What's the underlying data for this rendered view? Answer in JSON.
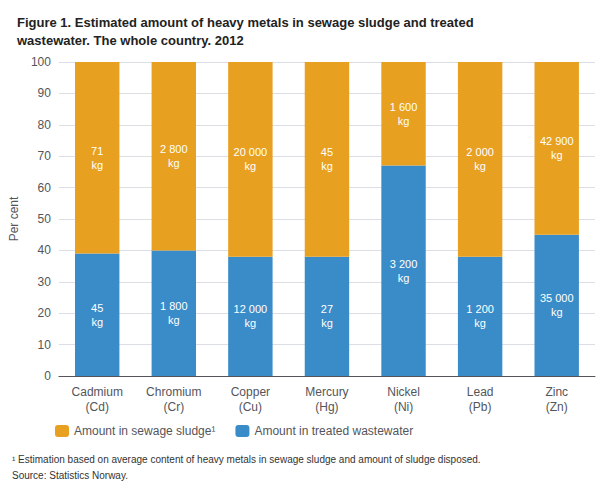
{
  "chart_data": {
    "type": "bar",
    "title": "Figure 1. Estimated amount of heavy metals in sewage sludge and treated\nwastewater. The whole country. 2012",
    "ylabel": "Per cent",
    "categories": [
      "Cadmium\n(Cd)",
      "Chromium\n(Cr)",
      "Copper\n(Cu)",
      "Mercury\n(Hg)",
      "Nickel\n(Ni)",
      "Lead\n(Pb)",
      "Zinc\n(Zn)"
    ],
    "stacked": true,
    "series": [
      {
        "name": "Amount in treated wastewater",
        "color": "#3A8CC8",
        "values": [
          39,
          40,
          38,
          38,
          67,
          38,
          45
        ],
        "annotations": [
          "45\nkg",
          "1 800\nkg",
          "12 000\nkg",
          "27\nkg",
          "3 200\nkg",
          "1 200\nkg",
          "35 000\nkg"
        ]
      },
      {
        "name": "Amount in sewage sludge¹",
        "color": "#E8A020",
        "values": [
          61,
          60,
          62,
          62,
          33,
          62,
          55
        ],
        "annotations": [
          "71\nkg",
          "2 800\nkg",
          "20 000\nkg",
          "45\nkg",
          "1 600\nkg",
          "2 000\nkg",
          "42 900\nkg"
        ]
      }
    ],
    "ylim": [
      0,
      100
    ],
    "yticks": [
      0,
      10,
      20,
      30,
      40,
      50,
      60,
      70,
      80,
      90,
      100
    ],
    "grid": true,
    "legend": "lower left",
    "footnotes": [
      "¹ Estimation based on average content of heavy metals in sewage sludge and amount of sludge disposed.",
      "Source: Statistics Norway."
    ]
  }
}
